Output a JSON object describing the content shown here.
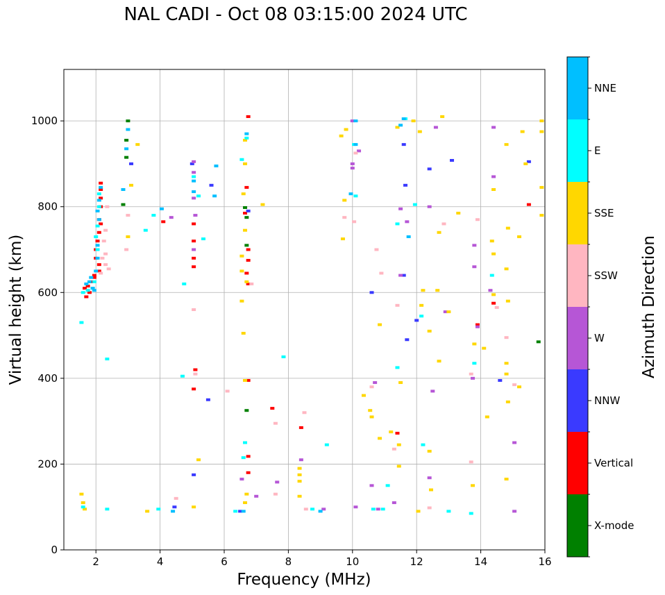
{
  "title": "NAL CADI - Oct 08 03:15:00 2024 UTC",
  "chart_data": {
    "type": "scatter",
    "xlabel": "Frequency (MHz)",
    "ylabel": "Virtual height (km)",
    "xlim": [
      1,
      16
    ],
    "ylim": [
      0,
      1120
    ],
    "x_ticks": [
      2,
      4,
      6,
      8,
      10,
      12,
      14,
      16
    ],
    "y_ticks": [
      0,
      200,
      400,
      600,
      800,
      1000
    ],
    "grid": true,
    "colorbar": {
      "label": "Azimuth Direction",
      "entries": [
        {
          "name": "X-mode",
          "color": "#008000"
        },
        {
          "name": "Vertical",
          "color": "#ff0000"
        },
        {
          "name": "NNW",
          "color": "#3a3aff"
        },
        {
          "name": "W",
          "color": "#b656d6"
        },
        {
          "name": "SSW",
          "color": "#ffb6c1"
        },
        {
          "name": "SSE",
          "color": "#ffd700"
        },
        {
          "name": "E",
          "color": "#00ffff"
        },
        {
          "name": "NNE",
          "color": "#00bfff"
        }
      ]
    },
    "series": [
      {
        "direction": "X-mode",
        "points": [
          [
            3.0,
            1000
          ],
          [
            2.95,
            955
          ],
          [
            2.95,
            915
          ],
          [
            2.85,
            805
          ],
          [
            6.65,
            798
          ],
          [
            6.7,
            775
          ],
          [
            6.7,
            710
          ],
          [
            6.7,
            325
          ],
          [
            15.8,
            485
          ]
        ]
      },
      {
        "direction": "Vertical",
        "points": [
          [
            2.15,
            855
          ],
          [
            2.15,
            840
          ],
          [
            2.15,
            820
          ],
          [
            2.15,
            800
          ],
          [
            2.1,
            770
          ],
          [
            2.15,
            760
          ],
          [
            2.1,
            740
          ],
          [
            2.05,
            720
          ],
          [
            2.0,
            700
          ],
          [
            2.0,
            680
          ],
          [
            2.1,
            665
          ],
          [
            2.1,
            650
          ],
          [
            1.95,
            640
          ],
          [
            1.95,
            635
          ],
          [
            1.85,
            625
          ],
          [
            1.75,
            615
          ],
          [
            1.65,
            610
          ],
          [
            1.8,
            600
          ],
          [
            1.7,
            590
          ],
          [
            4.1,
            765
          ],
          [
            5.05,
            760
          ],
          [
            5.05,
            720
          ],
          [
            5.05,
            680
          ],
          [
            5.05,
            660
          ],
          [
            5.1,
            420
          ],
          [
            5.05,
            375
          ],
          [
            6.75,
            1010
          ],
          [
            6.7,
            845
          ],
          [
            6.65,
            785
          ],
          [
            6.75,
            700
          ],
          [
            6.75,
            675
          ],
          [
            6.7,
            645
          ],
          [
            6.75,
            620
          ],
          [
            6.75,
            395
          ],
          [
            6.75,
            218
          ],
          [
            6.75,
            180
          ],
          [
            7.5,
            330
          ],
          [
            8.4,
            285
          ],
          [
            11.4,
            272
          ],
          [
            13.9,
            525
          ],
          [
            15.5,
            805
          ],
          [
            14.4,
            575
          ]
        ]
      },
      {
        "direction": "NNW",
        "points": [
          [
            3.1,
            900
          ],
          [
            5.0,
            900
          ],
          [
            5.6,
            850
          ],
          [
            6.75,
            790
          ],
          [
            5.5,
            350
          ],
          [
            11.6,
            945
          ],
          [
            11.65,
            850
          ],
          [
            11.6,
            640
          ],
          [
            11.7,
            490
          ],
          [
            12.4,
            888
          ],
          [
            13.1,
            908
          ],
          [
            14.6,
            395
          ],
          [
            15.5,
            905
          ],
          [
            5.05,
            175
          ],
          [
            4.45,
            100
          ],
          [
            6.5,
            90
          ],
          [
            10.6,
            600
          ],
          [
            12.0,
            535
          ]
        ]
      },
      {
        "direction": "W",
        "points": [
          [
            5.05,
            905
          ],
          [
            5.05,
            880
          ],
          [
            5.05,
            820
          ],
          [
            5.1,
            780
          ],
          [
            5.05,
            700
          ],
          [
            4.35,
            775
          ],
          [
            6.55,
            165
          ],
          [
            7.65,
            158
          ],
          [
            7.0,
            125
          ],
          [
            8.4,
            210
          ],
          [
            9.1,
            95
          ],
          [
            10.1,
            100
          ],
          [
            10.0,
            900
          ],
          [
            10.0,
            890
          ],
          [
            10.7,
            390
          ],
          [
            10.6,
            150
          ],
          [
            10.8,
            95
          ],
          [
            11.3,
            110
          ],
          [
            11.5,
            795
          ],
          [
            11.7,
            765
          ],
          [
            12.4,
            800
          ],
          [
            12.5,
            370
          ],
          [
            12.4,
            168
          ],
          [
            12.6,
            985
          ],
          [
            12.9,
            555
          ],
          [
            13.8,
            710
          ],
          [
            13.8,
            660
          ],
          [
            13.75,
            400
          ],
          [
            13.9,
            520
          ],
          [
            14.4,
            870
          ],
          [
            14.3,
            605
          ],
          [
            14.4,
            985
          ],
          [
            15.05,
            250
          ],
          [
            15.05,
            90
          ],
          [
            11.5,
            640
          ],
          [
            10.0,
            1000
          ],
          [
            10.2,
            930
          ]
        ]
      },
      {
        "direction": "SSW",
        "points": [
          [
            2.35,
            800
          ],
          [
            2.3,
            745
          ],
          [
            2.25,
            720
          ],
          [
            2.3,
            690
          ],
          [
            2.2,
            680
          ],
          [
            2.3,
            665
          ],
          [
            2.4,
            655
          ],
          [
            2.15,
            645
          ],
          [
            3.0,
            780
          ],
          [
            2.95,
            700
          ],
          [
            4.5,
            120
          ],
          [
            5.05,
            560
          ],
          [
            5.1,
            410
          ],
          [
            6.1,
            370
          ],
          [
            6.85,
            620
          ],
          [
            7.6,
            295
          ],
          [
            7.6,
            130
          ],
          [
            8.5,
            320
          ],
          [
            8.55,
            95
          ],
          [
            9.75,
            775
          ],
          [
            10.05,
            765
          ],
          [
            10.1,
            925
          ],
          [
            10.6,
            380
          ],
          [
            10.75,
            700
          ],
          [
            10.9,
            645
          ],
          [
            11.3,
            235
          ],
          [
            11.4,
            570
          ],
          [
            12.4,
            98
          ],
          [
            12.85,
            760
          ],
          [
            13.7,
            410
          ],
          [
            13.7,
            205
          ],
          [
            13.9,
            770
          ],
          [
            14.5,
            565
          ],
          [
            14.8,
            495
          ],
          [
            15.05,
            385
          ]
        ]
      },
      {
        "direction": "SSE",
        "points": [
          [
            1.55,
            130
          ],
          [
            1.6,
            110
          ],
          [
            1.65,
            95
          ],
          [
            3.3,
            945
          ],
          [
            3.0,
            730
          ],
          [
            3.1,
            850
          ],
          [
            3.6,
            90
          ],
          [
            5.05,
            100
          ],
          [
            5.2,
            210
          ],
          [
            6.55,
            580
          ],
          [
            6.65,
            955
          ],
          [
            6.65,
            900
          ],
          [
            6.6,
            830
          ],
          [
            6.65,
            745
          ],
          [
            6.55,
            685
          ],
          [
            6.55,
            650
          ],
          [
            6.7,
            625
          ],
          [
            6.6,
            505
          ],
          [
            6.65,
            395
          ],
          [
            6.7,
            130
          ],
          [
            6.65,
            110
          ],
          [
            7.2,
            805
          ],
          [
            8.35,
            190
          ],
          [
            8.35,
            175
          ],
          [
            8.35,
            160
          ],
          [
            8.35,
            125
          ],
          [
            9.65,
            965
          ],
          [
            9.8,
            980
          ],
          [
            9.75,
            815
          ],
          [
            9.7,
            725
          ],
          [
            10.35,
            360
          ],
          [
            10.55,
            325
          ],
          [
            10.6,
            310
          ],
          [
            10.85,
            525
          ],
          [
            10.85,
            260
          ],
          [
            11.2,
            275
          ],
          [
            11.4,
            985
          ],
          [
            11.45,
            245
          ],
          [
            11.45,
            195
          ],
          [
            11.5,
            390
          ],
          [
            11.9,
            1000
          ],
          [
            12.1,
            975
          ],
          [
            12.2,
            605
          ],
          [
            12.15,
            570
          ],
          [
            12.05,
            90
          ],
          [
            12.4,
            510
          ],
          [
            12.4,
            230
          ],
          [
            12.45,
            140
          ],
          [
            12.65,
            605
          ],
          [
            12.7,
            440
          ],
          [
            12.7,
            740
          ],
          [
            12.8,
            1010
          ],
          [
            13.3,
            785
          ],
          [
            13.8,
            480
          ],
          [
            13.75,
            150
          ],
          [
            14.1,
            470
          ],
          [
            14.35,
            720
          ],
          [
            14.4,
            840
          ],
          [
            14.4,
            690
          ],
          [
            14.4,
            595
          ],
          [
            14.8,
            945
          ],
          [
            14.85,
            750
          ],
          [
            14.8,
            655
          ],
          [
            14.85,
            580
          ],
          [
            14.8,
            435
          ],
          [
            14.8,
            410
          ],
          [
            14.85,
            345
          ],
          [
            14.8,
            165
          ],
          [
            15.2,
            730
          ],
          [
            15.2,
            380
          ],
          [
            15.3,
            975
          ],
          [
            15.4,
            900
          ],
          [
            15.9,
            975
          ],
          [
            15.9,
            845
          ],
          [
            15.9,
            780
          ],
          [
            15.9,
            1000
          ],
          [
            14.2,
            310
          ],
          [
            13.0,
            555
          ]
        ]
      },
      {
        "direction": "E",
        "points": [
          [
            1.6,
            600
          ],
          [
            1.75,
            605
          ],
          [
            1.9,
            610
          ],
          [
            1.95,
            625
          ],
          [
            2.05,
            700
          ],
          [
            2.0,
            730
          ],
          [
            2.05,
            755
          ],
          [
            2.1,
            800
          ],
          [
            2.1,
            830
          ],
          [
            1.55,
            530
          ],
          [
            1.6,
            100
          ],
          [
            2.35,
            95
          ],
          [
            2.35,
            445
          ],
          [
            3.55,
            745
          ],
          [
            3.8,
            780
          ],
          [
            3.95,
            95
          ],
          [
            4.7,
            405
          ],
          [
            4.75,
            620
          ],
          [
            5.35,
            725
          ],
          [
            5.2,
            825
          ],
          [
            5.05,
            870
          ],
          [
            6.35,
            90
          ],
          [
            6.55,
            910
          ],
          [
            6.7,
            960
          ],
          [
            6.65,
            250
          ],
          [
            6.6,
            215
          ],
          [
            7.85,
            450
          ],
          [
            8.75,
            95
          ],
          [
            9.2,
            245
          ],
          [
            10.05,
            945
          ],
          [
            10.1,
            825
          ],
          [
            10.65,
            95
          ],
          [
            10.95,
            95
          ],
          [
            11.1,
            150
          ],
          [
            11.4,
            425
          ],
          [
            11.4,
            760
          ],
          [
            11.65,
            1005
          ],
          [
            11.95,
            805
          ],
          [
            12.2,
            245
          ],
          [
            12.15,
            545
          ],
          [
            13.0,
            90
          ],
          [
            13.8,
            435
          ],
          [
            14.35,
            640
          ],
          [
            13.7,
            85
          ]
        ]
      },
      {
        "direction": "NNE",
        "points": [
          [
            1.7,
            620
          ],
          [
            1.8,
            625
          ],
          [
            1.85,
            635
          ],
          [
            1.9,
            610
          ],
          [
            1.95,
            605
          ],
          [
            2.0,
            650
          ],
          [
            2.05,
            680
          ],
          [
            2.05,
            710
          ],
          [
            2.1,
            770
          ],
          [
            2.05,
            790
          ],
          [
            2.1,
            815
          ],
          [
            2.15,
            845
          ],
          [
            2.85,
            840
          ],
          [
            2.95,
            935
          ],
          [
            3.0,
            980
          ],
          [
            4.05,
            795
          ],
          [
            4.4,
            90
          ],
          [
            5.05,
            835
          ],
          [
            5.05,
            860
          ],
          [
            5.7,
            825
          ],
          [
            5.75,
            895
          ],
          [
            6.7,
            970
          ],
          [
            6.6,
            90
          ],
          [
            9.0,
            90
          ],
          [
            9.95,
            830
          ],
          [
            10.1,
            945
          ],
          [
            10.1,
            1000
          ],
          [
            11.5,
            990
          ],
          [
            11.6,
            1005
          ],
          [
            11.75,
            730
          ]
        ]
      }
    ]
  }
}
